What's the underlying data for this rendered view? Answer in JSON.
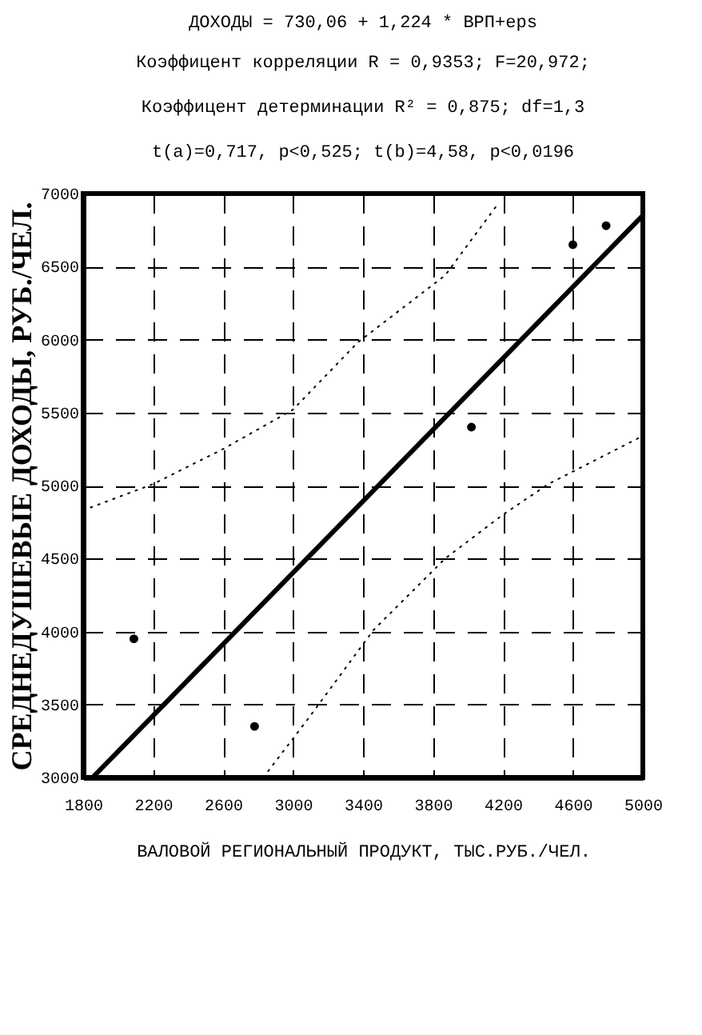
{
  "chart_data": {
    "type": "scatter",
    "title": "ДОХОДЫ = 730,06 + 1,224 * ВРП+eps",
    "annotations": [
      "Коэффицент корреляции R = 0,9353; F=20,972;",
      "Коэффицент детерминации R² = 0,875; df=1,3",
      "t(a)=0,717, p<0,525; t(b)=4,58, p<0,0196"
    ],
    "xlabel": "ВАЛОВОЙ РЕГИОНАЛЬНЫЙ ПРОДУКТ, ТЫС.РУБ./ЧЕЛ.",
    "ylabel": "СРЕДНЕДУШЕВЫЕ ДОХОДЫ, РУБ./ЧЕЛ.",
    "xlim": [
      1800,
      5000
    ],
    "xticks": [
      1800,
      2200,
      2600,
      3000,
      3400,
      3800,
      4200,
      4600,
      5000
    ],
    "ylim": [
      3000,
      7000
    ],
    "yticks": [
      3000,
      3500,
      4000,
      4500,
      5000,
      5500,
      6000,
      6500,
      7000
    ],
    "grid": true,
    "marker": "circle",
    "series": [
      {
        "color": "#000000",
        "x": [
          2090,
          2780,
          4020,
          4600,
          4790
        ],
        "values": [
          3950,
          3350,
          5400,
          6650,
          6780
        ]
      },
      {
        "type": "line",
        "color": "#000000",
        "line_style": "solid",
        "marker": "none",
        "x": [
          1854,
          5000
        ],
        "values": [
          3000,
          6850
        ]
      },
      {
        "type": "line",
        "color": "#000000",
        "line_style": "dotted",
        "marker": "none",
        "x": [
          1800,
          2200,
          2600,
          3000,
          3370,
          3870,
          4160
        ],
        "values": [
          4830,
          5010,
          5250,
          5520,
          5980,
          6440,
          6910
        ]
      },
      {
        "type": "line",
        "color": "#000000",
        "line_style": "dotted",
        "marker": "none",
        "x": [
          2830,
          3085,
          3460,
          3870,
          4200,
          4460,
          5000
        ],
        "values": [
          3000,
          3400,
          4010,
          4500,
          4800,
          5010,
          5340
        ]
      }
    ]
  }
}
